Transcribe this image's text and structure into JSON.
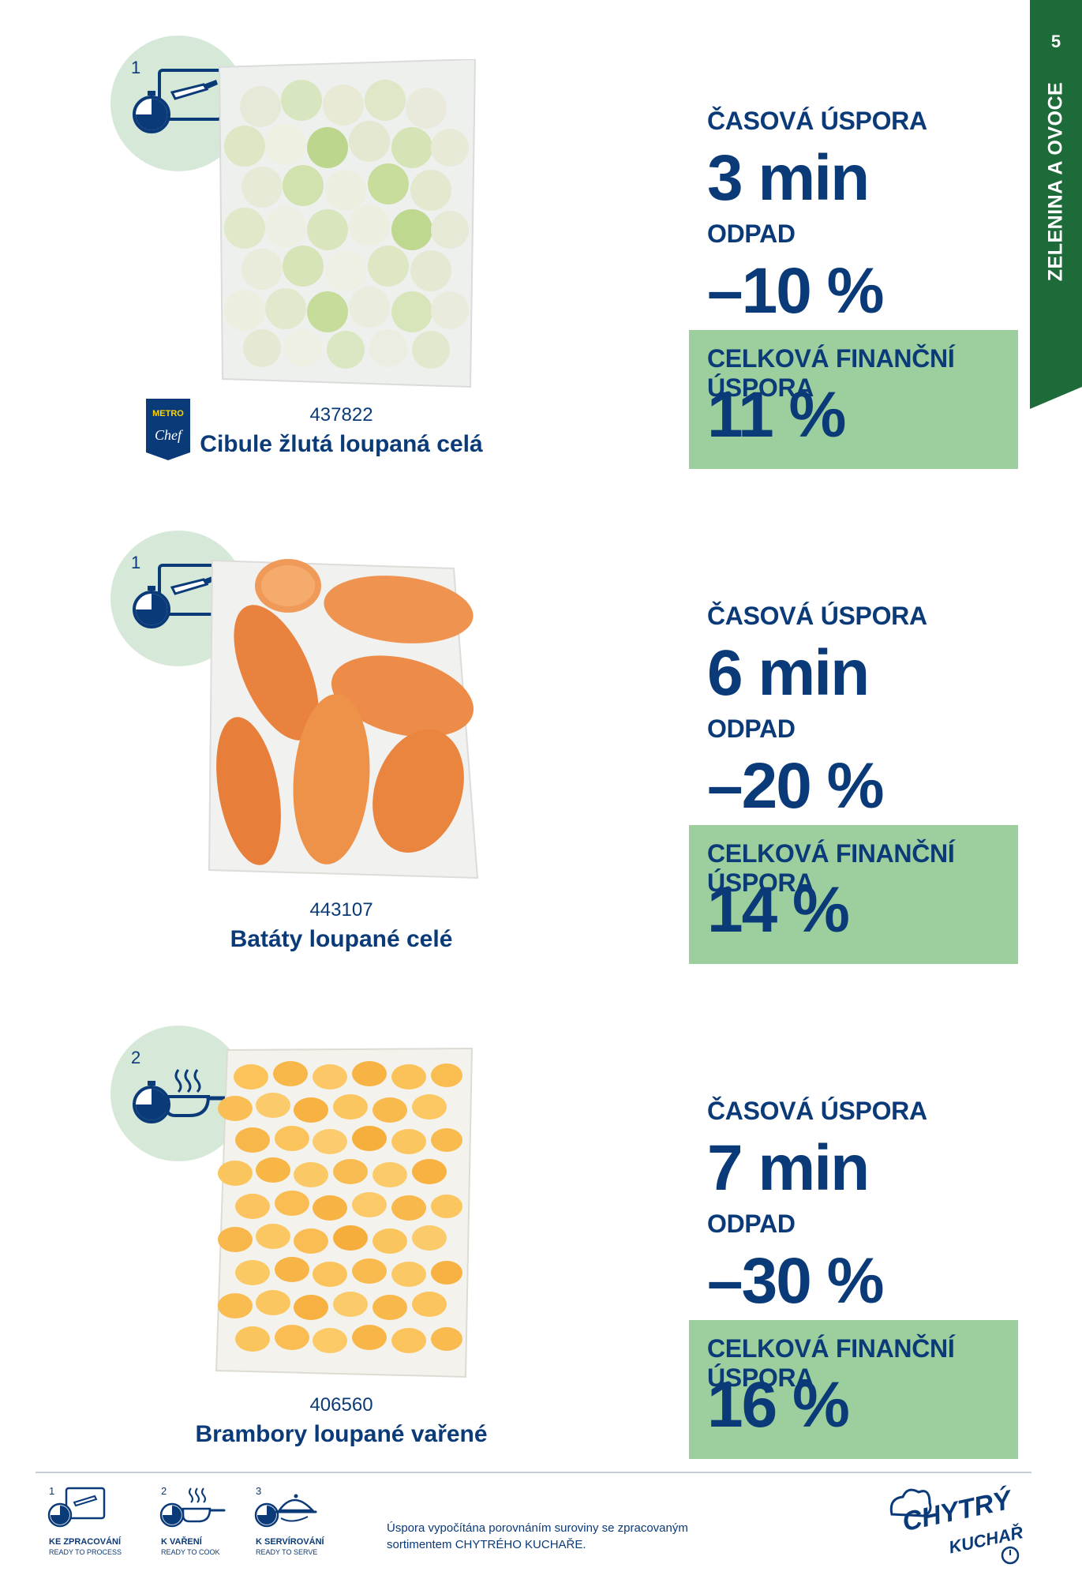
{
  "side_tab": {
    "page_number": "5",
    "section": "ZELENINA A OVOCE",
    "color": "#1e6b3a"
  },
  "products": [
    {
      "step": "1",
      "step_icon": "knife-board-timer-icon",
      "code": "437822",
      "name": "Cibule žlutá loupaná celá",
      "brand_logo": {
        "line1": "METRO",
        "line2": "Chef"
      },
      "time_label": "ČASOVÁ ÚSPORA",
      "time_value": "3 min",
      "waste_label": "ODPAD",
      "waste_value": "–10 %",
      "saving_label": "CELKOVÁ FINANČNÍ ÚSPORA",
      "saving_value": "11 %"
    },
    {
      "step": "1",
      "step_icon": "knife-board-timer-icon",
      "code": "443107",
      "name": "Batáty loupané celé",
      "time_label": "ČASOVÁ ÚSPORA",
      "time_value": "6 min",
      "waste_label": "ODPAD",
      "waste_value": "–20 %",
      "saving_label": "CELKOVÁ FINANČNÍ ÚSPORA",
      "saving_value": "14 %"
    },
    {
      "step": "2",
      "step_icon": "pan-steam-timer-icon",
      "code": "406560",
      "name": "Brambory loupané vařené",
      "time_label": "ČASOVÁ ÚSPORA",
      "time_value": "7 min",
      "waste_label": "ODPAD",
      "waste_value": "–30 %",
      "saving_label": "CELKOVÁ FINANČNÍ ÚSPORA",
      "saving_value": "16 %"
    }
  ],
  "legend": [
    {
      "num": "1",
      "title": "KE ZPRACOVÁNÍ",
      "sub": "READY TO PROCESS",
      "icon": "knife-board-timer-icon"
    },
    {
      "num": "2",
      "title": "K VAŘENÍ",
      "sub": "READY TO COOK",
      "icon": "pan-steam-timer-icon"
    },
    {
      "num": "3",
      "title": "K SERVÍROVÁNÍ",
      "sub": "READY TO SERVE",
      "icon": "cloche-timer-icon"
    }
  ],
  "footer_note": "Úspora vypočítána porovnáním suroviny se zpracovaným sortimentem CHYTRÉHO KUCHAŘE.",
  "brand": {
    "line1": "CHYTRÝ",
    "line2": "KUCHAŘ"
  },
  "colors": {
    "navy": "#0a3a78",
    "green_box": "#9dce9e",
    "circle": "#d6e8d8",
    "tab": "#1e6b3a"
  }
}
